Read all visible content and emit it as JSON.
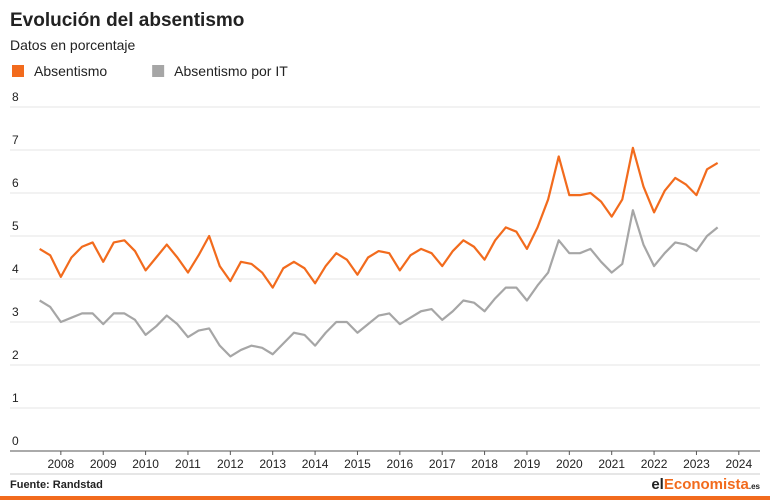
{
  "chart_data": {
    "type": "line",
    "title": "Evolución del absentismo",
    "subtitle": "Datos en porcentaje",
    "source": "Fuente: Randstad",
    "logo": [
      "el",
      "Economista",
      ".es"
    ],
    "x": [
      2008,
      2008.25,
      2008.5,
      2008.75,
      2009,
      2009.25,
      2009.5,
      2009.75,
      2010,
      2010.25,
      2010.5,
      2010.75,
      2011,
      2011.25,
      2011.5,
      2011.75,
      2012,
      2012.25,
      2012.5,
      2012.75,
      2013,
      2013.25,
      2013.5,
      2013.75,
      2014,
      2014.25,
      2014.5,
      2014.75,
      2015,
      2015.25,
      2015.5,
      2015.75,
      2016,
      2016.25,
      2016.5,
      2016.75,
      2017,
      2017.25,
      2017.5,
      2017.75,
      2018,
      2018.25,
      2018.5,
      2018.75,
      2019,
      2019.25,
      2019.5,
      2019.75,
      2020,
      2020.25,
      2020.5,
      2020.75,
      2021,
      2021.25,
      2021.5,
      2021.75,
      2022,
      2022.25,
      2022.5,
      2022.75,
      2023,
      2023.25,
      2023.5,
      2023.75,
      2024
    ],
    "series": [
      {
        "name": "Absentismo",
        "color": "#f26b1d",
        "values": [
          4.7,
          4.55,
          4.05,
          4.5,
          4.75,
          4.85,
          4.4,
          4.85,
          4.9,
          4.65,
          4.2,
          4.5,
          4.8,
          4.5,
          4.15,
          4.55,
          5.0,
          4.3,
          3.95,
          4.4,
          4.35,
          4.15,
          3.8,
          4.25,
          4.4,
          4.25,
          3.9,
          4.3,
          4.6,
          4.45,
          4.1,
          4.5,
          4.65,
          4.6,
          4.2,
          4.55,
          4.7,
          4.6,
          4.3,
          4.65,
          4.9,
          4.75,
          4.45,
          4.9,
          5.2,
          5.1,
          4.7,
          5.2,
          5.85,
          6.85,
          5.95,
          5.95,
          6.0,
          5.8,
          5.45,
          5.85,
          7.05,
          6.15,
          5.55,
          6.05,
          6.35,
          6.2,
          5.95,
          6.55,
          6.7
        ]
      },
      {
        "name": "Absentismo por IT",
        "color": "#a6a6a6",
        "values": [
          3.5,
          3.35,
          3.0,
          3.1,
          3.2,
          3.2,
          2.95,
          3.2,
          3.2,
          3.05,
          2.7,
          2.9,
          3.15,
          2.95,
          2.65,
          2.8,
          2.85,
          2.45,
          2.2,
          2.35,
          2.45,
          2.4,
          2.25,
          2.5,
          2.75,
          2.7,
          2.45,
          2.75,
          3.0,
          3.0,
          2.75,
          2.95,
          3.15,
          3.2,
          2.95,
          3.1,
          3.25,
          3.3,
          3.05,
          3.25,
          3.5,
          3.45,
          3.25,
          3.55,
          3.8,
          3.8,
          3.5,
          3.85,
          4.15,
          4.9,
          4.6,
          4.6,
          4.7,
          4.4,
          4.15,
          4.35,
          5.6,
          4.8,
          4.3,
          4.6,
          4.85,
          4.8,
          4.65,
          5.0,
          5.2
        ]
      }
    ],
    "xlim": [
      2007.3,
      2025
    ],
    "xticks": [
      {
        "value": 2008.5,
        "label": "2008"
      },
      {
        "value": 2009.5,
        "label": "2009"
      },
      {
        "value": 2010.5,
        "label": "2010"
      },
      {
        "value": 2011.5,
        "label": "2011"
      },
      {
        "value": 2012.5,
        "label": "2012"
      },
      {
        "value": 2013.5,
        "label": "2013"
      },
      {
        "value": 2014.5,
        "label": "2014"
      },
      {
        "value": 2015.5,
        "label": "2015"
      },
      {
        "value": 2016.5,
        "label": "2016"
      },
      {
        "value": 2017.5,
        "label": "2017"
      },
      {
        "value": 2018.5,
        "label": "2018"
      },
      {
        "value": 2019.5,
        "label": "2019"
      },
      {
        "value": 2020.5,
        "label": "2020"
      },
      {
        "value": 2021.5,
        "label": "2021"
      },
      {
        "value": 2022.5,
        "label": "2022"
      },
      {
        "value": 2023.5,
        "label": "2023"
      },
      {
        "value": 2024.5,
        "label": "2024"
      }
    ],
    "ylim": [
      0,
      8
    ],
    "yticks": [
      0,
      1,
      2,
      3,
      4,
      5,
      6,
      7,
      8
    ],
    "grid": true
  }
}
